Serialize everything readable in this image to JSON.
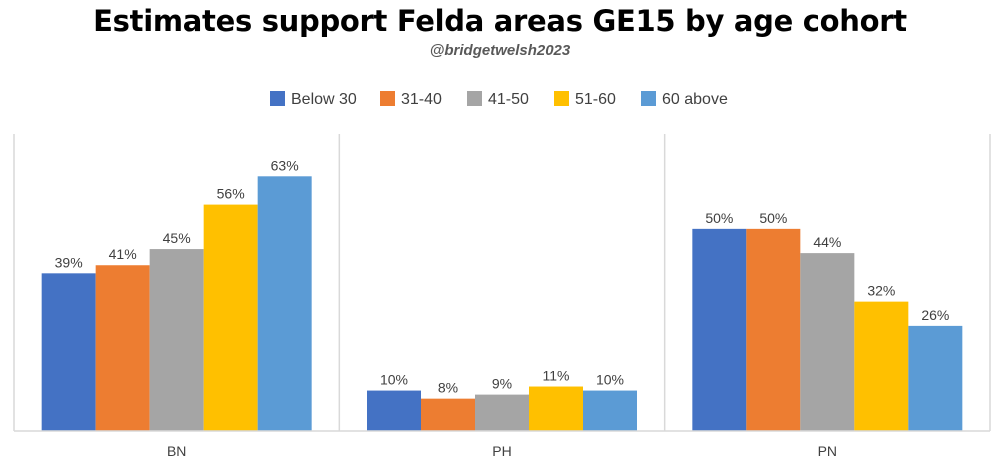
{
  "title": "Estimates support Felda areas GE15 by age cohort",
  "subtitle": "@bridgetwelsh2023",
  "chart_data": {
    "type": "bar",
    "categories": [
      "BN",
      "PH",
      "PN"
    ],
    "series": [
      {
        "name": "Below 30",
        "color": "#4472C4",
        "values": [
          39,
          10,
          50
        ],
        "labels": [
          "39%",
          "10%",
          "50%"
        ]
      },
      {
        "name": "31-40",
        "color": "#ED7D31",
        "values": [
          41,
          8,
          50
        ],
        "labels": [
          "41%",
          "8%",
          "50%"
        ]
      },
      {
        "name": "41-50",
        "color": "#A5A5A5",
        "values": [
          45,
          9,
          44
        ],
        "labels": [
          "45%",
          "9%",
          "44%"
        ]
      },
      {
        "name": "51-60",
        "color": "#FFC000",
        "values": [
          56,
          11,
          32
        ],
        "labels": [
          "56%",
          "11%",
          "32%"
        ]
      },
      {
        "name": "60 above",
        "color": "#5B9BD5",
        "values": [
          63,
          10,
          26
        ],
        "labels": [
          "63%",
          "10%",
          "26%"
        ]
      }
    ],
    "ylim": [
      0,
      70
    ],
    "legend_position": "top",
    "grid": false
  }
}
